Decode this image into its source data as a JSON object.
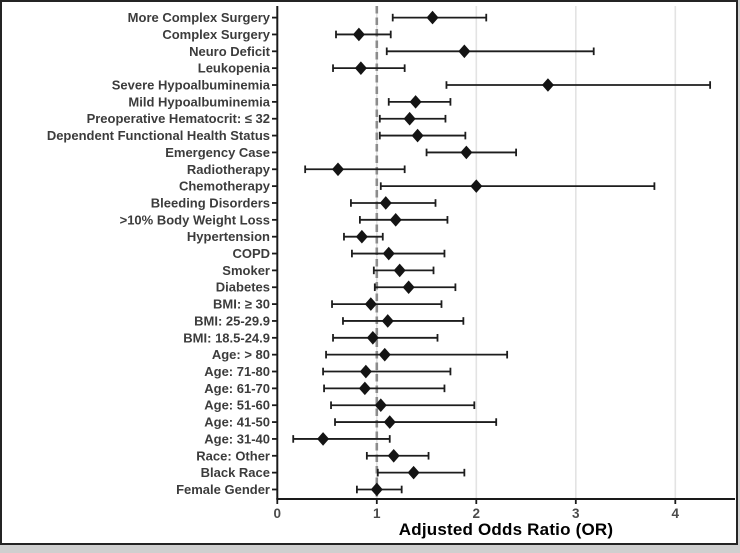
{
  "chart_data": {
    "type": "scatter",
    "variant": "forest-plot",
    "title": "",
    "xlabel": "Adjusted Odds Ratio (OR)",
    "ylabel": "",
    "xlim": [
      0,
      4.6
    ],
    "x_ticks": [
      0,
      1,
      2,
      3,
      4
    ],
    "reference_line_x": 1,
    "grid": "major-vertical-lines",
    "legend": "none",
    "marker": "diamond",
    "rows": [
      {
        "label": "More Complex Surgery",
        "or": 1.56,
        "ci_low": 1.16,
        "ci_high": 2.1
      },
      {
        "label": "Complex Surgery",
        "or": 0.82,
        "ci_low": 0.59,
        "ci_high": 1.14
      },
      {
        "label": "Neuro Deficit",
        "or": 1.88,
        "ci_low": 1.1,
        "ci_high": 3.18
      },
      {
        "label": "Leukopenia",
        "or": 0.84,
        "ci_low": 0.56,
        "ci_high": 1.28
      },
      {
        "label": "Severe Hypoalbuminemia",
        "or": 2.72,
        "ci_low": 1.7,
        "ci_high": 4.35
      },
      {
        "label": "Mild Hypoalbuminemia",
        "or": 1.39,
        "ci_low": 1.12,
        "ci_high": 1.74
      },
      {
        "label": "Preoperative Hematocrit: ≤ 32",
        "or": 1.33,
        "ci_low": 1.03,
        "ci_high": 1.69
      },
      {
        "label": "Dependent Functional Health Status",
        "or": 1.41,
        "ci_low": 1.03,
        "ci_high": 1.89
      },
      {
        "label": "Emergency Case",
        "or": 1.9,
        "ci_low": 1.5,
        "ci_high": 2.4
      },
      {
        "label": "Radiotherapy",
        "or": 0.61,
        "ci_low": 0.28,
        "ci_high": 1.28
      },
      {
        "label": "Chemotherapy",
        "or": 2.0,
        "ci_low": 1.04,
        "ci_high": 3.79
      },
      {
        "label": "Bleeding Disorders",
        "or": 1.09,
        "ci_low": 0.74,
        "ci_high": 1.59
      },
      {
        "label": ">10% Body Weight Loss",
        "or": 1.19,
        "ci_low": 0.83,
        "ci_high": 1.71
      },
      {
        "label": "Hypertension",
        "or": 0.85,
        "ci_low": 0.67,
        "ci_high": 1.06
      },
      {
        "label": "COPD",
        "or": 1.12,
        "ci_low": 0.75,
        "ci_high": 1.68
      },
      {
        "label": "Smoker",
        "or": 1.23,
        "ci_low": 0.97,
        "ci_high": 1.57
      },
      {
        "label": "Diabetes",
        "or": 1.32,
        "ci_low": 0.98,
        "ci_high": 1.79
      },
      {
        "label": "BMI: ≥ 30",
        "or": 0.94,
        "ci_low": 0.55,
        "ci_high": 1.65
      },
      {
        "label": "BMI: 25-29.9",
        "or": 1.11,
        "ci_low": 0.66,
        "ci_high": 1.87
      },
      {
        "label": "BMI: 18.5-24.9",
        "or": 0.96,
        "ci_low": 0.56,
        "ci_high": 1.61
      },
      {
        "label": "Age: > 80",
        "or": 1.08,
        "ci_low": 0.49,
        "ci_high": 2.31
      },
      {
        "label": "Age: 71-80",
        "or": 0.89,
        "ci_low": 0.46,
        "ci_high": 1.74
      },
      {
        "label": "Age: 61-70",
        "or": 0.88,
        "ci_low": 0.47,
        "ci_high": 1.68
      },
      {
        "label": "Age: 51-60",
        "or": 1.04,
        "ci_low": 0.54,
        "ci_high": 1.98
      },
      {
        "label": "Age: 41-50",
        "or": 1.13,
        "ci_low": 0.58,
        "ci_high": 2.2
      },
      {
        "label": "Age: 31-40",
        "or": 0.46,
        "ci_low": 0.16,
        "ci_high": 1.13
      },
      {
        "label": "Race: Other",
        "or": 1.17,
        "ci_low": 0.9,
        "ci_high": 1.52
      },
      {
        "label": "Black Race",
        "or": 1.37,
        "ci_low": 1.01,
        "ci_high": 1.88
      },
      {
        "label": "Female Gender",
        "or": 1.0,
        "ci_low": 0.8,
        "ci_high": 1.25
      }
    ]
  },
  "style": {
    "marker_color": "#141414",
    "ci_color": "#1d1d1d",
    "reference_line_color": "#8c8c8c",
    "gridline_color": "#e3e3e3",
    "axis_line_color": "#1a1a1a",
    "tick_label_color": "#4b4b4b",
    "row_label_color": "#3c3c3c",
    "background": "#ffffff",
    "frame_border": "#242424"
  }
}
